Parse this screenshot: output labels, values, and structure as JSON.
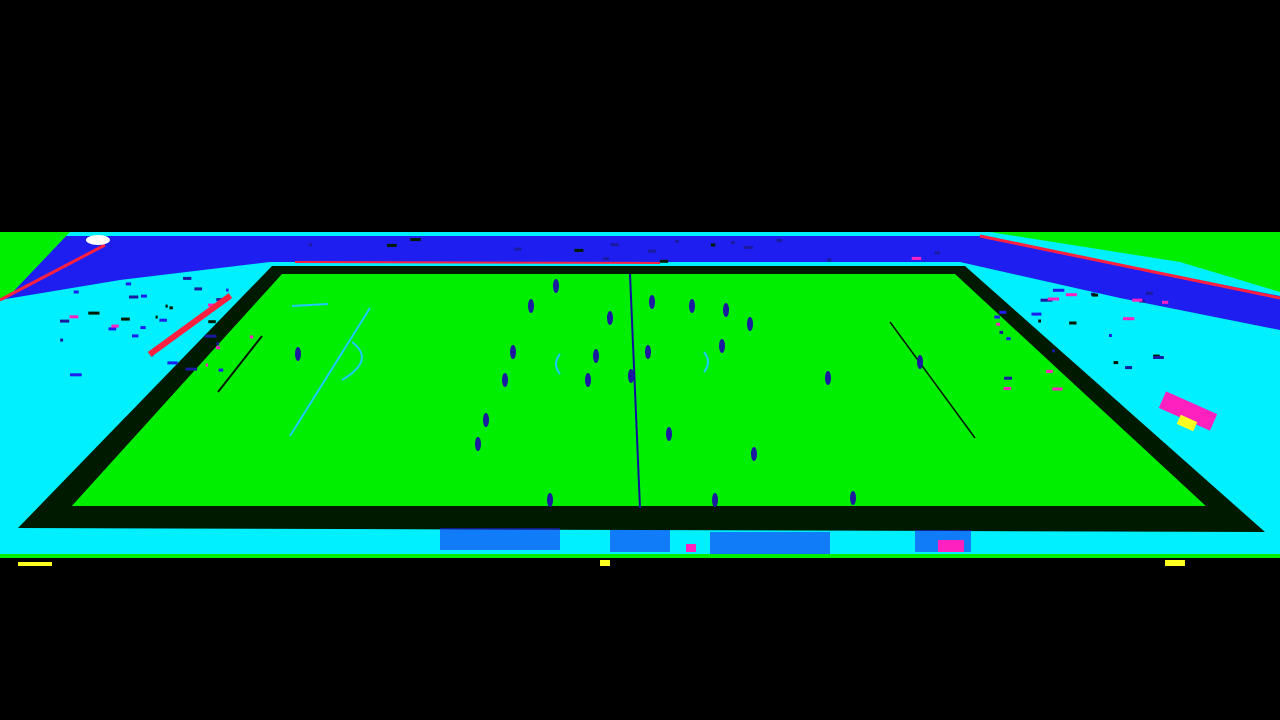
{
  "image": {
    "subject": "football-stadium-aerial-view",
    "colors": {
      "background": "#000000",
      "pitch": "#00ee00",
      "stands": "#00f0ff",
      "roof": "#1e1ef0",
      "pitch_border": "#001a00",
      "lines": "#20c8ff",
      "players": "#1a1aa0",
      "accent_red": "#ff2040",
      "accent_magenta": "#ff20c0",
      "accent_yellow": "#ffff20",
      "accent_white": "#ffffff"
    },
    "player_count": 24,
    "pitch_markings": [
      "halfway-line",
      "penalty-area-left",
      "penalty-area-right",
      "centre-circle"
    ]
  }
}
